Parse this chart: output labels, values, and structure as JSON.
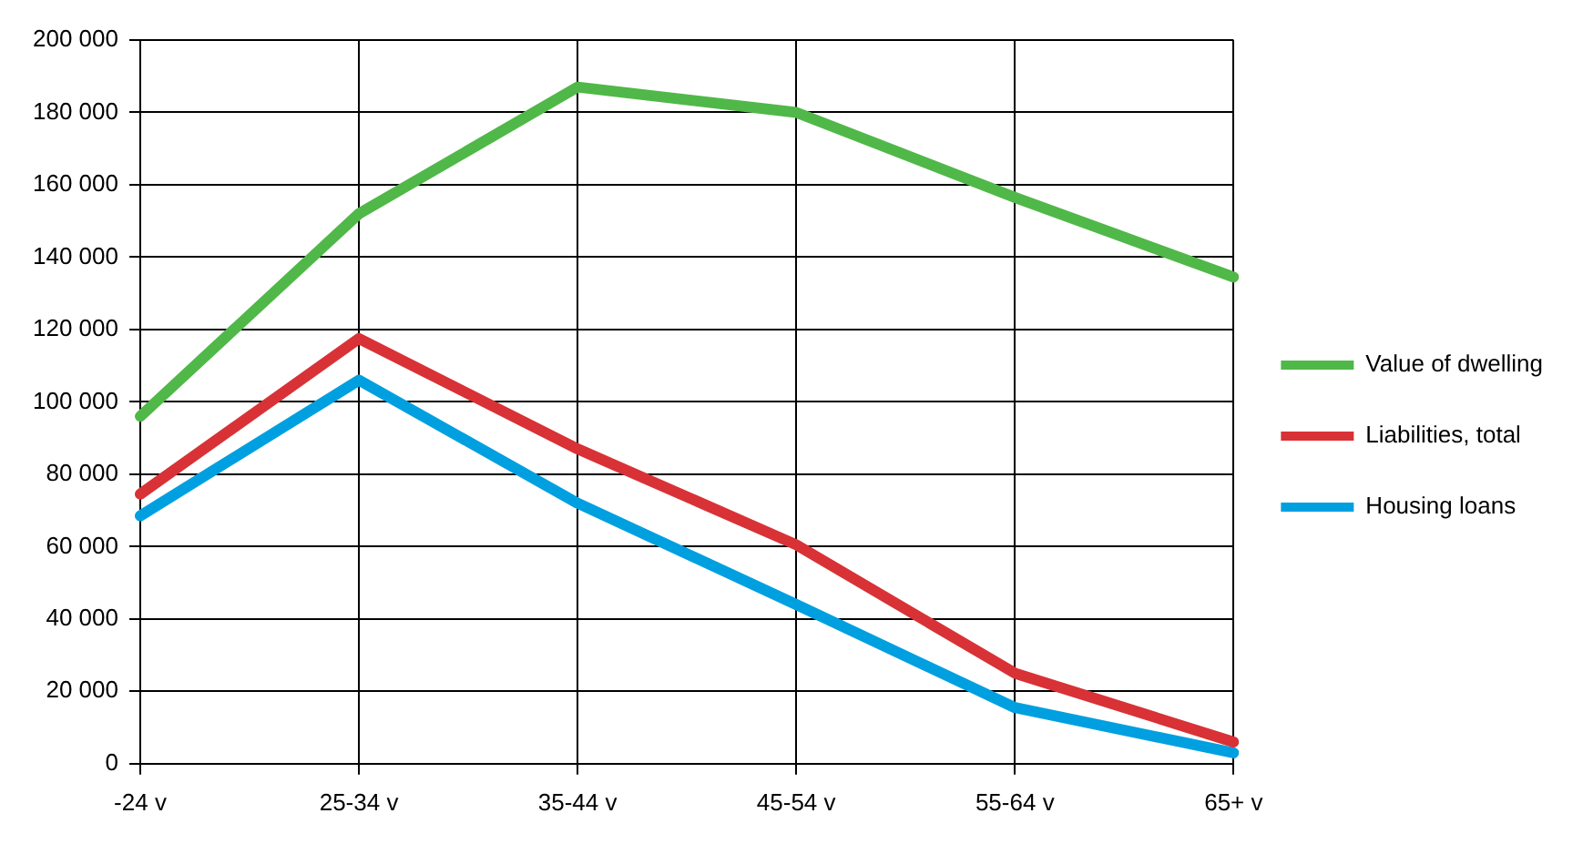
{
  "chart_data": {
    "type": "line",
    "categories": [
      "-24 v",
      "25-34 v",
      "35-44 v",
      "45-54 v",
      "55-64 v",
      "65+ v"
    ],
    "series": [
      {
        "name": "Value of dwelling",
        "color": "#50b848",
        "values": [
          96000,
          152000,
          187000,
          180000,
          156500,
          134500
        ]
      },
      {
        "name": "Liabilities, total",
        "color": "#d83236",
        "values": [
          74500,
          117500,
          87000,
          60500,
          25000,
          6000
        ]
      },
      {
        "name": "Housing loans",
        "color": "#00a0e0",
        "values": [
          68500,
          106000,
          72000,
          44000,
          15500,
          3000
        ]
      }
    ],
    "ylim": [
      0,
      200000
    ],
    "yticks": [
      0,
      {
        "value": 20000,
        "label": "20 000"
      },
      {
        "value": 40000,
        "label": "40 000"
      },
      {
        "value": 60000,
        "label": "60 000"
      },
      {
        "value": 80000,
        "label": "80 000"
      },
      {
        "value": 100000,
        "label": "100 000"
      },
      {
        "value": 120000,
        "label": "120 000"
      },
      {
        "value": 140000,
        "label": "140 000"
      },
      {
        "value": 160000,
        "label": "160 000"
      },
      {
        "value": 180000,
        "label": "180 000"
      },
      {
        "value": 200000,
        "label": "200 000"
      }
    ],
    "grid": true,
    "legend": "right",
    "marker": "none",
    "line_style": "solid"
  }
}
